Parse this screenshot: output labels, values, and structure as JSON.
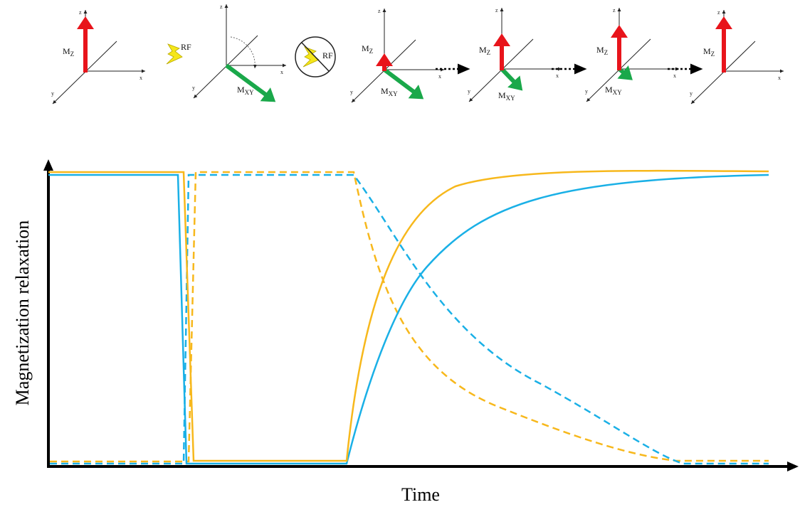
{
  "panels": [
    {
      "axis_labels": [
        "x",
        "y",
        "z"
      ],
      "mz": [
        "M",
        "Z"
      ],
      "mxy": null
    },
    {
      "axis_labels": [
        "x",
        "y",
        "z"
      ],
      "mz": null,
      "mxy": [
        "M",
        "XY"
      ]
    },
    {
      "axis_labels": [
        "x",
        "y",
        "z"
      ],
      "mz": [
        "M",
        "Z"
      ],
      "mxy": [
        "M",
        "XY"
      ]
    },
    {
      "axis_labels": [
        "x",
        "y",
        "z"
      ],
      "mz": [
        "M",
        "Z"
      ],
      "mxy": [
        "M",
        "XY"
      ]
    },
    {
      "axis_labels": [
        "x",
        "y",
        "z"
      ],
      "mz": [
        "M",
        "Z"
      ],
      "mxy": [
        "M",
        "XY"
      ]
    },
    {
      "axis_labels": [
        "x",
        "y",
        "z"
      ],
      "mz": [
        "M",
        "Z"
      ],
      "mxy": null
    }
  ],
  "rf_label": "RF",
  "no_rf_label": "RF",
  "plot": {
    "y_label": "Magnetization relaxation",
    "x_label": "Time"
  }
}
